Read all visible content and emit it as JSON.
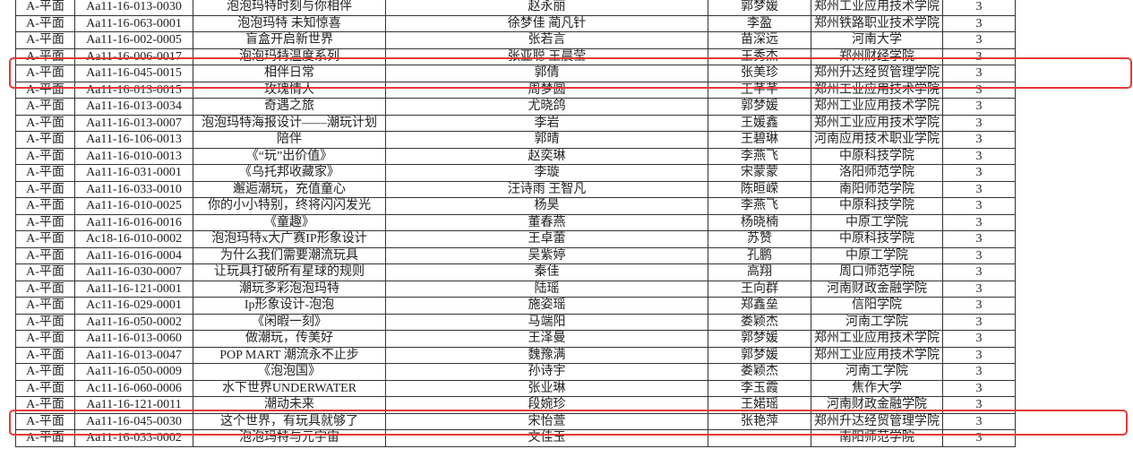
{
  "highlight_color": "#e53935",
  "rows": [
    {
      "category": "A-平面",
      "code": "Aa11-16-013-0030",
      "title": "泡泡玛特时刻与你相伴",
      "authors": "赵永丽",
      "advisor": "郭梦媛",
      "school": "郑州工业应用技术学院",
      "count": "3"
    },
    {
      "category": "A-平面",
      "code": "Aa11-16-063-0001",
      "title": "泡泡玛特 未知惊喜",
      "authors": "徐梦佳 蔺凡针",
      "advisor": "李盈",
      "school": "郑州铁路职业技术学院",
      "count": "3"
    },
    {
      "category": "A-平面",
      "code": "Aa11-16-002-0005",
      "title": "盲盒开启新世界",
      "authors": "张若言",
      "advisor": "苗深远",
      "school": "河南大学",
      "count": "3"
    },
    {
      "category": "A-平面",
      "code": "Aa11-16-006-0017",
      "title": "泡泡玛特温度系列",
      "authors": "张亚聪 王晨莹",
      "advisor": "王秀杰",
      "school": "郑州财经学院",
      "count": "3"
    },
    {
      "category": "A-平面",
      "code": "Aa11-16-045-0015",
      "title": "相伴日常",
      "authors": "郭倩",
      "advisor": "张美珍",
      "school": "郑州升达经贸管理学院",
      "count": "3",
      "highlighted": true
    },
    {
      "category": "A-平面",
      "code": "Aa11-16-013-0015",
      "title": "玫瑰情人",
      "authors": "周梦圆",
      "advisor": "王芊芊",
      "school": "郑州工业应用技术学院",
      "count": "3"
    },
    {
      "category": "A-平面",
      "code": "Aa11-16-013-0034",
      "title": "奇遇之旅",
      "authors": "尤晓鸽",
      "advisor": "郭梦媛",
      "school": "郑州工业应用技术学院",
      "count": "3"
    },
    {
      "category": "A-平面",
      "code": "Aa11-16-013-0007",
      "title": "泡泡玛特海报设计——潮玩计划",
      "authors": "李岩",
      "advisor": "王媛鑫",
      "school": "郑州工业应用技术学院",
      "count": "3"
    },
    {
      "category": "A-平面",
      "code": "Aa11-16-106-0013",
      "title": "陪伴",
      "authors": "郭晴",
      "advisor": "王碧琳",
      "school": "河南应用技术职业学院",
      "count": "3"
    },
    {
      "category": "A-平面",
      "code": "Aa11-16-010-0013",
      "title": "《“玩”出价值》",
      "authors": "赵奕琳",
      "advisor": "李燕飞",
      "school": "中原科技学院",
      "count": "3"
    },
    {
      "category": "A-平面",
      "code": "Aa11-16-031-0001",
      "title": "《乌托邦收藏家》",
      "authors": "李璇",
      "advisor": "宋蒙蒙",
      "school": "洛阳师范学院",
      "count": "3"
    },
    {
      "category": "A-平面",
      "code": "Aa11-16-033-0010",
      "title": "邂逅潮玩，充值童心",
      "authors": "汪诗雨 王智凡",
      "advisor": "陈晅嵘",
      "school": "南阳师范学院",
      "count": "3"
    },
    {
      "category": "A-平面",
      "code": "Aa11-16-010-0025",
      "title": "你的小小特别，终将闪闪发光",
      "authors": "杨昊",
      "advisor": "李燕飞",
      "school": "中原科技学院",
      "count": "3"
    },
    {
      "category": "A-平面",
      "code": "Aa11-16-016-0016",
      "title": "《童趣》",
      "authors": "董春燕",
      "advisor": "杨晓楠",
      "school": "中原工学院",
      "count": "3"
    },
    {
      "category": "A-平面",
      "code": "Ac18-16-010-0002",
      "title": "泡泡玛特x大广赛IP形象设计",
      "authors": "王卓蕾",
      "advisor": "苏赞",
      "school": "中原科技学院",
      "count": "3"
    },
    {
      "category": "A-平面",
      "code": "Aa11-16-016-0004",
      "title": "为什么我们需要潮流玩具",
      "authors": "吴紫婷",
      "advisor": "孔鹏",
      "school": "中原工学院",
      "count": "3"
    },
    {
      "category": "A-平面",
      "code": "Aa11-16-030-0007",
      "title": "让玩具打破所有星球的规则",
      "authors": "秦佳",
      "advisor": "高翔",
      "school": "周口师范学院",
      "count": "3"
    },
    {
      "category": "A-平面",
      "code": "Aa11-16-121-0001",
      "title": "潮玩多彩泡泡玛特",
      "authors": "陆瑶",
      "advisor": "王向群",
      "school": "河南财政金融学院",
      "count": "3"
    },
    {
      "category": "A-平面",
      "code": "Ac11-16-029-0001",
      "title": "Ip形象设计-泡泡",
      "authors": "施姿瑶",
      "advisor": "郑鑫垒",
      "school": "信阳学院",
      "count": "3"
    },
    {
      "category": "A-平面",
      "code": "Aa11-16-050-0002",
      "title": "《闲暇一刻》",
      "authors": "马端阳",
      "advisor": "娄颖杰",
      "school": "河南工学院",
      "count": "3"
    },
    {
      "category": "A-平面",
      "code": "Aa11-16-013-0060",
      "title": "做潮玩，传美好",
      "authors": "王泽曼",
      "advisor": "郭梦媛",
      "school": "郑州工业应用技术学院",
      "count": "3"
    },
    {
      "category": "A-平面",
      "code": "Aa11-16-013-0047",
      "title": "POP MART 潮流永不止步",
      "authors": "魏豫满",
      "advisor": "郭梦媛",
      "school": "郑州工业应用技术学院",
      "count": "3"
    },
    {
      "category": "A-平面",
      "code": "Aa11-16-050-0009",
      "title": "《泡泡国》",
      "authors": "孙诗宇",
      "advisor": "娄颖杰",
      "school": "河南工学院",
      "count": "3"
    },
    {
      "category": "A-平面",
      "code": "Ac11-16-060-0006",
      "title": "水下世界UNDERWATER",
      "authors": "张业琳",
      "advisor": "李玉霞",
      "school": "焦作大学",
      "count": "3"
    },
    {
      "category": "A-平面",
      "code": "Aa11-16-121-0011",
      "title": "潮动未来",
      "authors": "段婉珍",
      "advisor": "王婼瑶",
      "school": "河南财政金融学院",
      "count": "3"
    },
    {
      "category": "A-平面",
      "code": "Aa11-16-045-0030",
      "title": "这个世界，有玩具就够了",
      "authors": "宋怡萱",
      "advisor": "张艳萍",
      "school": "郑州升达经贸管理学院",
      "count": "3",
      "highlighted": true
    },
    {
      "category": "A-平面",
      "code": "Aa11-16-033-0002",
      "title": "泡泡玛特与元宇宙",
      "authors": "文佳玉",
      "advisor": "",
      "school": "南阳师范学院",
      "count": "3"
    }
  ]
}
